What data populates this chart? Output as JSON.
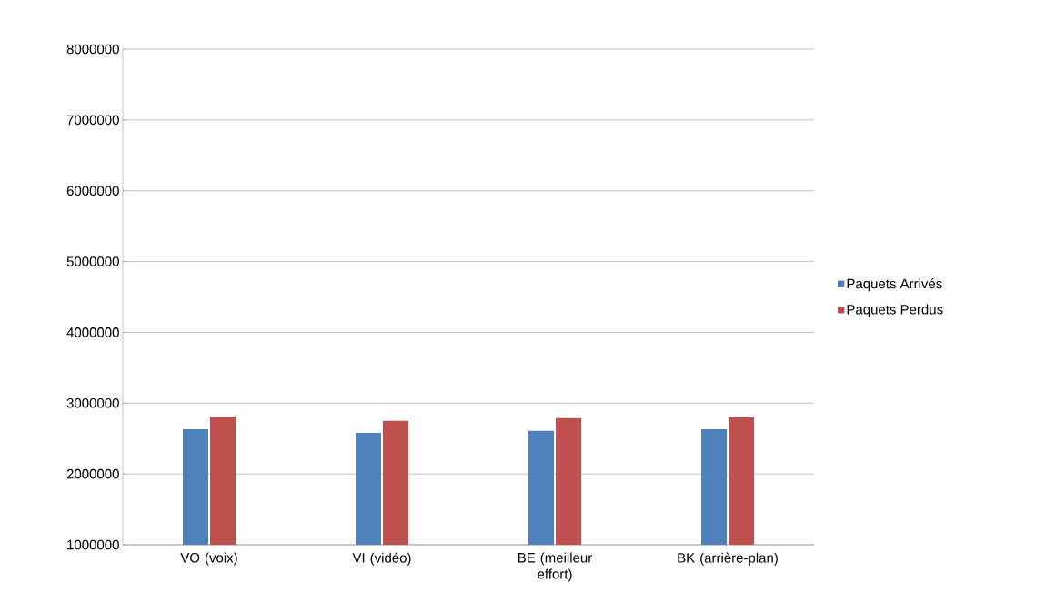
{
  "chart_data": {
    "type": "bar",
    "categories": [
      "VO (voix)",
      "VI (vidéo)",
      "BE (meilleur effort)",
      "BK (arrière-plan)"
    ],
    "series": [
      {
        "name": "Paquets Arrivés",
        "color": "#4f81bd",
        "values": [
          2630000,
          2580000,
          2610000,
          2630000
        ]
      },
      {
        "name": "Paquets Perdus",
        "color": "#c0504d",
        "values": [
          2810000,
          2750000,
          2790000,
          2800000
        ]
      }
    ],
    "ylim": [
      1000000,
      8000000
    ],
    "yticks": [
      1000000,
      2000000,
      3000000,
      4000000,
      5000000,
      6000000,
      7000000,
      8000000
    ],
    "grid": "y",
    "legend": "right"
  }
}
